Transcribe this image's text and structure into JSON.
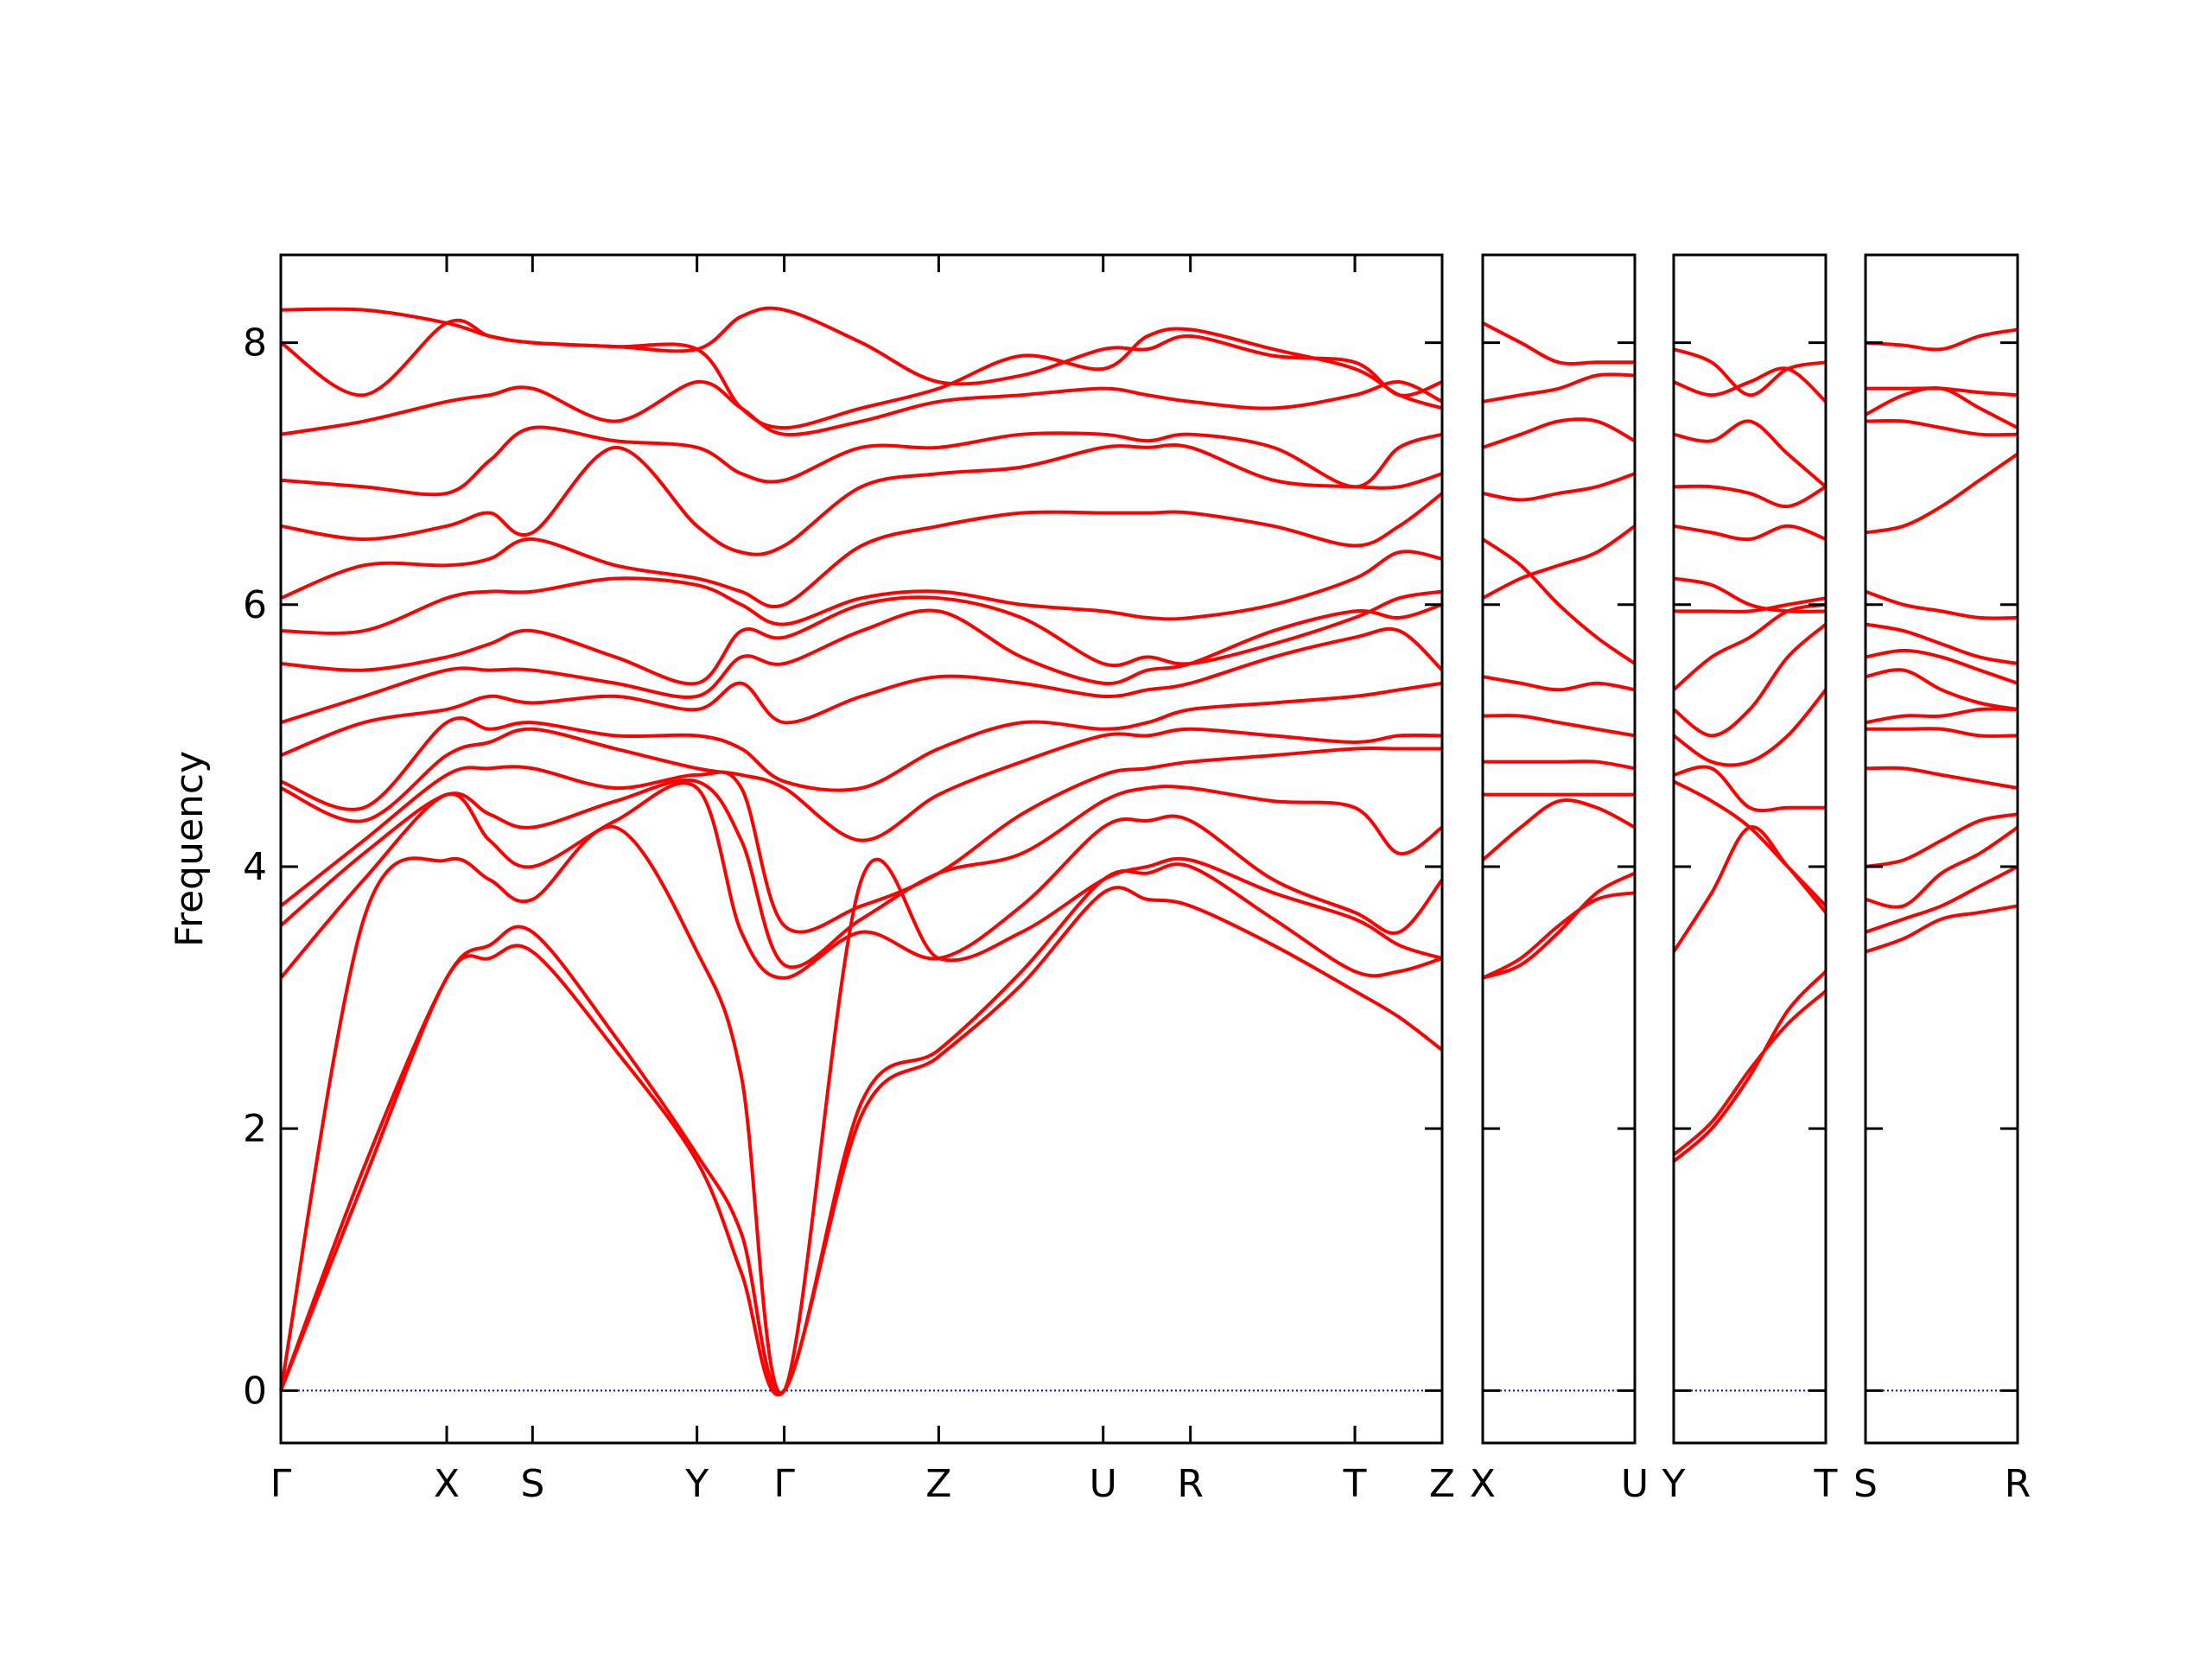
{
  "chart_data": [
    {
      "type": "line",
      "ylabel": "Frequency",
      "color": "#ff0000",
      "show_ytick_labels": true,
      "hline": 0,
      "hline_color": "#0000cc",
      "xlim": [
        0,
        8.12
      ],
      "ylim": [
        -0.4,
        8.67
      ],
      "yticks": [
        0,
        2,
        4,
        6,
        8
      ],
      "xticks": [
        {
          "value": 0,
          "label": "Γ"
        },
        {
          "value": 1.16,
          "label": "X"
        },
        {
          "value": 1.76,
          "label": "S"
        },
        {
          "value": 2.91,
          "label": "Y"
        },
        {
          "value": 3.52,
          "label": "Γ"
        },
        {
          "value": 4.6,
          "label": "Z"
        },
        {
          "value": 5.75,
          "label": "U"
        },
        {
          "value": 6.36,
          "label": "R"
        },
        {
          "value": 7.51,
          "label": "T"
        },
        {
          "value": 8.12,
          "label": "Z"
        }
      ],
      "x": [
        0,
        0.58,
        1.16,
        1.46,
        1.76,
        2.34,
        2.91,
        3.22,
        3.52,
        4.06,
        4.6,
        5.18,
        5.75,
        6.06,
        6.36,
        6.94,
        7.51,
        7.82,
        8.12
      ],
      "series": [
        {
          "values": [
            0,
            1.6,
            3.15,
            3.3,
            3.35,
            2.6,
            1.75,
            0.9,
            0,
            2.1,
            2.55,
            3.1,
            3.8,
            3.75,
            3.7,
            3.4,
            3.05,
            2.85,
            2.6
          ]
        },
        {
          "values": [
            0,
            1.7,
            3.15,
            3.4,
            3.5,
            2.7,
            1.8,
            1.2,
            0,
            2.2,
            2.6,
            3.2,
            3.9,
            3.95,
            4.0,
            3.6,
            3.2,
            3.2,
            3.3
          ]
        },
        {
          "values": [
            0,
            3.6,
            4.05,
            3.9,
            3.75,
            4.3,
            3.35,
            2.4,
            0,
            3.9,
            3.3,
            3.5,
            3.9,
            4.0,
            4.05,
            3.8,
            3.6,
            3.4,
            3.3
          ]
        },
        {
          "values": [
            3.15,
            3.9,
            4.55,
            4.2,
            4.0,
            4.35,
            4.6,
            3.5,
            3.15,
            3.5,
            3.3,
            3.7,
            4.3,
            4.35,
            4.35,
            3.9,
            3.65,
            3.5,
            3.9
          ]
        },
        {
          "values": [
            3.55,
            4.1,
            4.55,
            4.4,
            4.3,
            4.5,
            4.65,
            4.2,
            3.25,
            3.6,
            3.95,
            4.1,
            4.5,
            4.6,
            4.6,
            4.5,
            4.45,
            4.1,
            4.3
          ]
        },
        {
          "values": [
            3.7,
            4.2,
            4.7,
            4.75,
            4.75,
            4.6,
            4.7,
            4.6,
            3.55,
            3.7,
            3.95,
            4.4,
            4.7,
            4.75,
            4.8,
            4.85,
            4.9,
            4.9,
            4.9
          ]
        },
        {
          "values": [
            4.6,
            4.35,
            4.85,
            4.95,
            5.05,
            4.9,
            4.75,
            4.7,
            4.6,
            4.2,
            4.55,
            4.8,
            5.0,
            5.0,
            5.05,
            5.0,
            4.95,
            5.0,
            5.0
          ]
        },
        {
          "values": [
            4.65,
            4.45,
            5.1,
            5.05,
            5.1,
            5.0,
            5.0,
            4.9,
            4.65,
            4.6,
            4.9,
            5.1,
            5.05,
            5.1,
            5.2,
            5.25,
            5.3,
            5.35,
            5.4
          ]
        },
        {
          "values": [
            4.85,
            5.1,
            5.2,
            5.3,
            5.25,
            5.3,
            5.2,
            5.4,
            5.1,
            5.3,
            5.45,
            5.4,
            5.3,
            5.35,
            5.4,
            5.6,
            5.75,
            5.8,
            5.5
          ]
        },
        {
          "values": [
            5.1,
            5.3,
            5.5,
            5.5,
            5.5,
            5.4,
            5.3,
            5.6,
            5.55,
            5.8,
            5.95,
            5.6,
            5.4,
            5.5,
            5.55,
            5.8,
            5.95,
            5.9,
            6.0
          ]
        },
        {
          "values": [
            5.55,
            5.5,
            5.6,
            5.7,
            5.8,
            5.6,
            5.4,
            5.8,
            5.75,
            6.0,
            6.05,
            5.9,
            5.55,
            5.6,
            5.55,
            5.7,
            5.9,
            6.05,
            6.1
          ]
        },
        {
          "values": [
            5.8,
            5.8,
            6.05,
            6.1,
            6.1,
            6.2,
            6.15,
            6.0,
            5.85,
            6.05,
            6.1,
            6.0,
            5.95,
            5.9,
            5.9,
            6.0,
            6.2,
            6.4,
            6.35
          ]
        },
        {
          "values": [
            6.05,
            6.3,
            6.3,
            6.35,
            6.5,
            6.3,
            6.2,
            6.1,
            6.0,
            6.45,
            6.6,
            6.7,
            6.7,
            6.7,
            6.7,
            6.6,
            6.45,
            6.6,
            6.85
          ]
        },
        {
          "values": [
            6.6,
            6.5,
            6.6,
            6.7,
            6.55,
            7.2,
            6.6,
            6.4,
            6.45,
            6.9,
            7.0,
            7.05,
            7.2,
            7.2,
            7.2,
            6.95,
            6.9,
            6.9,
            7.0
          ]
        },
        {
          "values": [
            6.95,
            6.9,
            6.85,
            7.1,
            7.35,
            7.25,
            7.2,
            7.0,
            6.95,
            7.2,
            7.2,
            7.3,
            7.3,
            7.25,
            7.3,
            7.2,
            6.9,
            7.2,
            7.3
          ]
        },
        {
          "values": [
            7.3,
            7.4,
            7.55,
            7.6,
            7.65,
            7.4,
            7.7,
            7.5,
            7.3,
            7.4,
            7.55,
            7.6,
            7.65,
            7.6,
            7.55,
            7.5,
            7.6,
            7.7,
            7.55
          ]
        },
        {
          "values": [
            8.0,
            7.6,
            8.15,
            8.05,
            8.0,
            7.97,
            7.95,
            7.5,
            7.35,
            7.5,
            7.65,
            7.9,
            7.8,
            8.05,
            8.1,
            7.95,
            7.8,
            7.6,
            7.5
          ]
        },
        {
          "values": [
            8.25,
            8.25,
            8.15,
            8.05,
            8.0,
            7.97,
            7.95,
            8.2,
            8.25,
            8.0,
            7.7,
            7.75,
            7.95,
            7.95,
            8.05,
            7.9,
            7.85,
            7.6,
            7.7
          ]
        }
      ]
    },
    {
      "type": "line",
      "color": "#ff0000",
      "show_ytick_labels": false,
      "hline": 0,
      "hline_color": "#0000cc",
      "xlim": [
        0,
        1.06
      ],
      "ylim": [
        -0.4,
        8.67
      ],
      "yticks": [
        0,
        2,
        4,
        6,
        8
      ],
      "xticks": [
        {
          "value": 0,
          "label": "X"
        },
        {
          "value": 1.06,
          "label": "U"
        }
      ],
      "x": [
        0,
        0.265,
        0.53,
        0.795,
        1.06
      ],
      "series": [
        {
          "values": [
            3.15,
            3.25,
            3.5,
            3.8,
            3.95
          ]
        },
        {
          "values": [
            3.15,
            3.3,
            3.55,
            3.75,
            3.8
          ]
        },
        {
          "values": [
            4.05,
            4.3,
            4.5,
            4.45,
            4.3
          ]
        },
        {
          "values": [
            4.55,
            4.55,
            4.55,
            4.55,
            4.55
          ]
        },
        {
          "values": [
            4.8,
            4.8,
            4.8,
            4.8,
            4.75
          ]
        },
        {
          "values": [
            5.15,
            5.15,
            5.1,
            5.05,
            5.0
          ]
        },
        {
          "values": [
            5.45,
            5.4,
            5.35,
            5.4,
            5.35
          ]
        },
        {
          "values": [
            6.05,
            6.2,
            6.3,
            6.4,
            6.6
          ]
        },
        {
          "values": [
            6.5,
            6.3,
            6.0,
            5.75,
            5.55
          ]
        },
        {
          "values": [
            6.85,
            6.8,
            6.85,
            6.9,
            7.0
          ]
        },
        {
          "values": [
            7.2,
            7.3,
            7.4,
            7.4,
            7.25
          ]
        },
        {
          "values": [
            7.55,
            7.6,
            7.65,
            7.75,
            7.75
          ]
        },
        {
          "values": [
            8.15,
            8.0,
            7.85,
            7.85,
            7.85
          ]
        }
      ]
    },
    {
      "type": "line",
      "color": "#ff0000",
      "show_ytick_labels": false,
      "hline": 0,
      "hline_color": "#0000cc",
      "xlim": [
        0,
        1.06
      ],
      "ylim": [
        -0.4,
        8.67
      ],
      "yticks": [
        0,
        2,
        4,
        6,
        8
      ],
      "xticks": [
        {
          "value": 0,
          "label": "Y"
        },
        {
          "value": 1.06,
          "label": "T"
        }
      ],
      "x": [
        0,
        0.265,
        0.53,
        0.795,
        1.06
      ],
      "series": [
        {
          "values": [
            1.75,
            2.0,
            2.4,
            2.9,
            3.2
          ]
        },
        {
          "values": [
            1.8,
            2.05,
            2.45,
            2.8,
            3.05
          ]
        },
        {
          "values": [
            3.35,
            3.8,
            4.3,
            4.0,
            3.65
          ]
        },
        {
          "values": [
            4.65,
            4.5,
            4.3,
            4.0,
            3.7
          ]
        },
        {
          "values": [
            4.7,
            4.75,
            4.45,
            4.45,
            4.45
          ]
        },
        {
          "values": [
            5.0,
            4.8,
            4.8,
            5.0,
            5.35
          ]
        },
        {
          "values": [
            5.2,
            5.0,
            5.2,
            5.6,
            5.85
          ]
        },
        {
          "values": [
            5.35,
            5.6,
            5.75,
            5.95,
            6.0
          ]
        },
        {
          "values": [
            5.95,
            5.95,
            5.95,
            6.0,
            6.05
          ]
        },
        {
          "values": [
            6.2,
            6.15,
            6.0,
            5.95,
            5.95
          ]
        },
        {
          "values": [
            6.6,
            6.55,
            6.5,
            6.6,
            6.5
          ]
        },
        {
          "values": [
            6.9,
            6.9,
            6.85,
            6.75,
            6.9
          ]
        },
        {
          "values": [
            7.3,
            7.25,
            7.4,
            7.15,
            6.9
          ]
        },
        {
          "values": [
            7.7,
            7.6,
            7.7,
            7.8,
            7.55
          ]
        },
        {
          "values": [
            7.95,
            7.85,
            7.6,
            7.8,
            7.85
          ]
        }
      ]
    },
    {
      "type": "line",
      "color": "#ff0000",
      "show_ytick_labels": false,
      "hline": 0,
      "hline_color": "#0000cc",
      "xlim": [
        0,
        1.06
      ],
      "ylim": [
        -0.4,
        8.67
      ],
      "yticks": [
        0,
        2,
        4,
        6,
        8
      ],
      "xticks": [
        {
          "value": 0,
          "label": "S"
        },
        {
          "value": 1.06,
          "label": "R"
        }
      ],
      "x": [
        0,
        0.265,
        0.53,
        0.795,
        1.06
      ],
      "series": [
        {
          "values": [
            3.35,
            3.45,
            3.6,
            3.65,
            3.7
          ]
        },
        {
          "values": [
            3.5,
            3.6,
            3.7,
            3.85,
            4.0
          ]
        },
        {
          "values": [
            3.75,
            3.7,
            3.95,
            4.1,
            4.3
          ]
        },
        {
          "values": [
            4.0,
            4.05,
            4.2,
            4.35,
            4.4
          ]
        },
        {
          "values": [
            4.75,
            4.75,
            4.7,
            4.65,
            4.6
          ]
        },
        {
          "values": [
            5.05,
            5.05,
            5.05,
            5.0,
            5.0
          ]
        },
        {
          "values": [
            5.1,
            5.15,
            5.15,
            5.2,
            5.2
          ]
        },
        {
          "values": [
            5.45,
            5.5,
            5.35,
            5.25,
            5.2
          ]
        },
        {
          "values": [
            5.6,
            5.65,
            5.6,
            5.5,
            5.4
          ]
        },
        {
          "values": [
            5.85,
            5.8,
            5.7,
            5.6,
            5.55
          ]
        },
        {
          "values": [
            6.1,
            6.0,
            5.95,
            5.9,
            5.9
          ]
        },
        {
          "values": [
            6.55,
            6.6,
            6.75,
            6.95,
            7.15
          ]
        },
        {
          "values": [
            7.4,
            7.4,
            7.35,
            7.3,
            7.3
          ]
        },
        {
          "values": [
            7.45,
            7.6,
            7.65,
            7.5,
            7.35
          ]
        },
        {
          "values": [
            7.65,
            7.65,
            7.65,
            7.62,
            7.6
          ]
        },
        {
          "values": [
            8.0,
            7.98,
            7.95,
            8.05,
            8.1
          ]
        }
      ]
    }
  ]
}
